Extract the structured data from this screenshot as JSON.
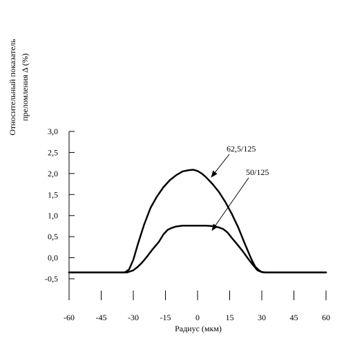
{
  "chart_data": {
    "type": "line",
    "title": "",
    "xlabel": "Радиус (мкм)",
    "ylabel_lines": [
      "Относительный показатель",
      "преломления Δ (%)"
    ],
    "xlim": [
      -60,
      60
    ],
    "ylim": [
      -0.5,
      3.0
    ],
    "x_ticks": [
      {
        "value": -60,
        "label": "-60"
      },
      {
        "value": -45,
        "label": "-45"
      },
      {
        "value": -30,
        "label": "-30"
      },
      {
        "value": -15,
        "label": "-15"
      },
      {
        "value": 0,
        "label": "0"
      },
      {
        "value": 15,
        "label": "15"
      },
      {
        "value": 30,
        "label": "30"
      },
      {
        "value": 45,
        "label": "45"
      },
      {
        "value": 60,
        "label": "60"
      }
    ],
    "y_ticks": [
      {
        "value": 3.0,
        "label": "3,0"
      },
      {
        "value": 2.5,
        "label": "2,5"
      },
      {
        "value": 2.0,
        "label": "2,0"
      },
      {
        "value": 1.5,
        "label": "1,5"
      },
      {
        "value": 1.0,
        "label": "1,0"
      },
      {
        "value": 0.5,
        "label": "0,5"
      },
      {
        "value": 0.0,
        "label": "0,0"
      },
      {
        "value": -0.5,
        "label": "-0,5"
      }
    ],
    "series": [
      {
        "name": "62,5/125",
        "x": [
          -60,
          -34,
          -32,
          -30,
          -28,
          -25,
          -22,
          -19,
          -16,
          -13,
          -10,
          -7,
          -4,
          -2,
          0,
          2,
          4,
          7,
          10,
          13,
          16,
          19,
          22,
          25,
          27,
          29,
          30,
          31,
          33,
          60
        ],
        "y": [
          -0.35,
          -0.35,
          -0.28,
          -0.05,
          0.3,
          0.78,
          1.18,
          1.45,
          1.67,
          1.84,
          1.96,
          2.05,
          2.08,
          2.09,
          2.06,
          2.0,
          1.91,
          1.75,
          1.56,
          1.32,
          1.04,
          0.72,
          0.34,
          -0.02,
          -0.22,
          -0.31,
          -0.34,
          -0.35,
          -0.35,
          -0.35
        ]
      },
      {
        "name": "50/125",
        "x": [
          -60,
          -33,
          -30,
          -28,
          -26,
          -24,
          -21,
          -18,
          -16,
          -14,
          -12,
          -10,
          -7,
          -4,
          0,
          4,
          7,
          10,
          12,
          14,
          16,
          18,
          21,
          24,
          26,
          28,
          30,
          32,
          60
        ],
        "y": [
          -0.35,
          -0.35,
          -0.3,
          -0.22,
          -0.12,
          0.0,
          0.2,
          0.38,
          0.55,
          0.66,
          0.71,
          0.74,
          0.76,
          0.76,
          0.76,
          0.76,
          0.75,
          0.72,
          0.68,
          0.6,
          0.47,
          0.35,
          0.16,
          -0.05,
          -0.18,
          -0.3,
          -0.34,
          -0.35,
          -0.35
        ]
      }
    ],
    "annotations": [
      {
        "text": "62,5/125",
        "series": "62,5/125"
      },
      {
        "text": "50/125",
        "series": "50/125"
      }
    ],
    "grid": false,
    "legend": "none"
  }
}
